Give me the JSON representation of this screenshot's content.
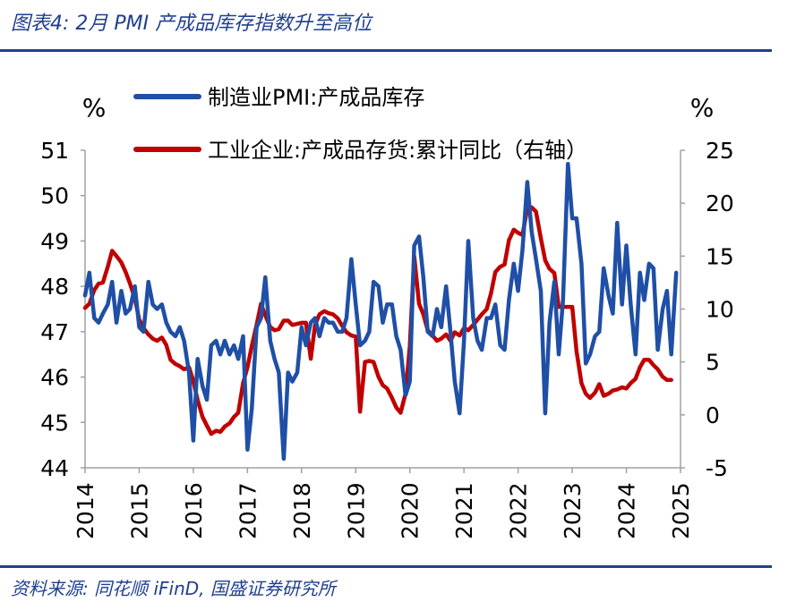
{
  "header": {
    "title": "图表4:  2月 PMI 产成品库存指数升至高位"
  },
  "footer": {
    "source": "资料来源:  同花顺 iFinD, 国盛证券研究所"
  },
  "colors": {
    "accent": "#1f3f8f",
    "series_blue": "#1f4fa6",
    "series_red": "#c00000"
  },
  "chart_data": {
    "type": "line",
    "legend_position": "top",
    "grid": false,
    "left_axis": {
      "label": "%",
      "range": [
        44,
        51
      ],
      "ticks": [
        "51",
        "50",
        "49",
        "48",
        "47",
        "46",
        "45",
        "44"
      ]
    },
    "right_axis": {
      "label": "%",
      "range": [
        -5,
        25
      ],
      "ticks": [
        "25",
        "20",
        "15",
        "10",
        "5",
        "0",
        "-5"
      ]
    },
    "x_axis": {
      "ticks": [
        "2014",
        "2015",
        "2016",
        "2017",
        "2018",
        "2019",
        "2020",
        "2021",
        "2022",
        "2023",
        "2024",
        "2025"
      ]
    },
    "series": [
      {
        "name": "制造业PMI:产成品库存",
        "axis": "left",
        "color": "#1f4fa6",
        "points": [
          [
            2014.0,
            47.8
          ],
          [
            2014.08,
            48.3
          ],
          [
            2014.17,
            47.3
          ],
          [
            2014.25,
            47.2
          ],
          [
            2014.33,
            47.4
          ],
          [
            2014.42,
            47.6
          ],
          [
            2014.5,
            48.1
          ],
          [
            2014.58,
            47.2
          ],
          [
            2014.67,
            47.9
          ],
          [
            2014.75,
            47.4
          ],
          [
            2014.83,
            47.5
          ],
          [
            2014.92,
            48.0
          ],
          [
            2015.0,
            47.1
          ],
          [
            2015.08,
            47.0
          ],
          [
            2015.17,
            48.1
          ],
          [
            2015.25,
            47.6
          ],
          [
            2015.33,
            47.5
          ],
          [
            2015.42,
            47.6
          ],
          [
            2015.5,
            47.2
          ],
          [
            2015.58,
            47.0
          ],
          [
            2015.67,
            46.9
          ],
          [
            2015.75,
            47.1
          ],
          [
            2015.83,
            46.8
          ],
          [
            2015.92,
            46.1
          ],
          [
            2016.0,
            44.6
          ],
          [
            2016.08,
            46.4
          ],
          [
            2016.17,
            45.8
          ],
          [
            2016.25,
            45.5
          ],
          [
            2016.33,
            46.7
          ],
          [
            2016.42,
            46.8
          ],
          [
            2016.5,
            46.5
          ],
          [
            2016.58,
            46.8
          ],
          [
            2016.67,
            46.5
          ],
          [
            2016.75,
            46.7
          ],
          [
            2016.83,
            46.4
          ],
          [
            2016.92,
            46.9
          ],
          [
            2017.0,
            44.4
          ],
          [
            2017.08,
            45.3
          ],
          [
            2017.17,
            47.1
          ],
          [
            2017.25,
            47.3
          ],
          [
            2017.33,
            48.2
          ],
          [
            2017.42,
            46.8
          ],
          [
            2017.5,
            46.4
          ],
          [
            2017.58,
            46.1
          ],
          [
            2017.67,
            44.2
          ],
          [
            2017.75,
            46.1
          ],
          [
            2017.83,
            45.9
          ],
          [
            2017.92,
            46.1
          ],
          [
            2018.0,
            47.1
          ],
          [
            2018.08,
            46.7
          ],
          [
            2018.17,
            47.2
          ],
          [
            2018.25,
            47.3
          ],
          [
            2018.33,
            46.9
          ],
          [
            2018.42,
            47.3
          ],
          [
            2018.5,
            47.2
          ],
          [
            2018.58,
            47.2
          ],
          [
            2018.67,
            47.0
          ],
          [
            2018.75,
            47.0
          ],
          [
            2018.83,
            47.3
          ],
          [
            2018.92,
            48.6
          ],
          [
            2019.0,
            47.6
          ],
          [
            2019.08,
            46.7
          ],
          [
            2019.17,
            46.8
          ],
          [
            2019.25,
            47.0
          ],
          [
            2019.33,
            48.1
          ],
          [
            2019.42,
            48.0
          ],
          [
            2019.5,
            47.2
          ],
          [
            2019.58,
            47.6
          ],
          [
            2019.67,
            47.6
          ],
          [
            2019.75,
            46.9
          ],
          [
            2019.83,
            46.6
          ],
          [
            2019.92,
            45.6
          ],
          [
            2020.0,
            45.9
          ],
          [
            2020.08,
            48.9
          ],
          [
            2020.17,
            49.1
          ],
          [
            2020.25,
            48.2
          ],
          [
            2020.33,
            47.0
          ],
          [
            2020.42,
            46.9
          ],
          [
            2020.5,
            47.5
          ],
          [
            2020.58,
            47.1
          ],
          [
            2020.67,
            48.0
          ],
          [
            2020.75,
            47.0
          ],
          [
            2020.83,
            45.9
          ],
          [
            2020.92,
            45.2
          ],
          [
            2021.0,
            46.8
          ],
          [
            2021.08,
            49.0
          ],
          [
            2021.17,
            47.3
          ],
          [
            2021.25,
            46.8
          ],
          [
            2021.33,
            46.6
          ],
          [
            2021.42,
            47.3
          ],
          [
            2021.5,
            47.3
          ],
          [
            2021.58,
            47.6
          ],
          [
            2021.67,
            46.7
          ],
          [
            2021.75,
            46.6
          ],
          [
            2021.83,
            47.7
          ],
          [
            2021.92,
            48.5
          ],
          [
            2022.0,
            47.9
          ],
          [
            2022.08,
            48.8
          ],
          [
            2022.17,
            50.3
          ],
          [
            2022.25,
            49.2
          ],
          [
            2022.33,
            48.6
          ],
          [
            2022.42,
            47.9
          ],
          [
            2022.5,
            45.2
          ],
          [
            2022.58,
            47.2
          ],
          [
            2022.67,
            48.1
          ],
          [
            2022.75,
            46.5
          ],
          [
            2022.83,
            47.7
          ],
          [
            2022.92,
            50.7
          ],
          [
            2023.0,
            49.5
          ],
          [
            2023.08,
            49.5
          ],
          [
            2023.17,
            48.5
          ],
          [
            2023.25,
            46.3
          ],
          [
            2023.33,
            46.5
          ],
          [
            2023.42,
            46.9
          ],
          [
            2023.5,
            47.0
          ],
          [
            2023.58,
            48.4
          ],
          [
            2023.67,
            47.8
          ],
          [
            2023.75,
            47.4
          ],
          [
            2023.83,
            49.4
          ],
          [
            2023.92,
            47.6
          ],
          [
            2024.0,
            48.9
          ],
          [
            2024.08,
            47.6
          ],
          [
            2024.17,
            46.5
          ],
          [
            2024.25,
            48.3
          ],
          [
            2024.33,
            47.7
          ],
          [
            2024.42,
            48.5
          ],
          [
            2024.5,
            48.4
          ],
          [
            2024.58,
            46.6
          ],
          [
            2024.67,
            47.5
          ],
          [
            2024.75,
            47.9
          ],
          [
            2024.83,
            46.5
          ],
          [
            2024.92,
            48.3
          ]
        ]
      },
      {
        "name": "工业企业:产成品存货:累计同比（右轴）",
        "axis": "right",
        "color": "#c00000",
        "points": [
          [
            2014.0,
            10.1
          ],
          [
            2014.08,
            10.5
          ],
          [
            2014.17,
            11.8
          ],
          [
            2014.25,
            12.4
          ],
          [
            2014.33,
            12.5
          ],
          [
            2014.42,
            14.0
          ],
          [
            2014.5,
            15.5
          ],
          [
            2014.58,
            15.0
          ],
          [
            2014.67,
            14.4
          ],
          [
            2014.75,
            13.5
          ],
          [
            2014.83,
            12.4
          ],
          [
            2014.92,
            11.0
          ],
          [
            2015.0,
            9.0
          ],
          [
            2015.08,
            8.2
          ],
          [
            2015.17,
            7.6
          ],
          [
            2015.25,
            7.2
          ],
          [
            2015.33,
            7.0
          ],
          [
            2015.42,
            7.3
          ],
          [
            2015.5,
            6.6
          ],
          [
            2015.58,
            5.2
          ],
          [
            2015.67,
            4.8
          ],
          [
            2015.75,
            4.6
          ],
          [
            2015.83,
            4.3
          ],
          [
            2015.92,
            4.5
          ],
          [
            2016.0,
            3.2
          ],
          [
            2016.08,
            1.4
          ],
          [
            2016.17,
            -0.2
          ],
          [
            2016.25,
            -1.0
          ],
          [
            2016.33,
            -1.8
          ],
          [
            2016.42,
            -1.5
          ],
          [
            2016.5,
            -1.6
          ],
          [
            2016.58,
            -1.1
          ],
          [
            2016.67,
            -0.8
          ],
          [
            2016.75,
            -0.2
          ],
          [
            2016.83,
            0.2
          ],
          [
            2016.92,
            3.0
          ],
          [
            2017.0,
            4.5
          ],
          [
            2017.08,
            6.5
          ],
          [
            2017.17,
            8.5
          ],
          [
            2017.25,
            10.5
          ],
          [
            2017.33,
            9.4
          ],
          [
            2017.42,
            8.3
          ],
          [
            2017.5,
            8.0
          ],
          [
            2017.58,
            8.1
          ],
          [
            2017.67,
            8.9
          ],
          [
            2017.75,
            8.9
          ],
          [
            2017.83,
            8.5
          ],
          [
            2017.92,
            8.6
          ],
          [
            2018.0,
            8.7
          ],
          [
            2018.08,
            8.7
          ],
          [
            2018.17,
            5.3
          ],
          [
            2018.25,
            8.5
          ],
          [
            2018.33,
            9.5
          ],
          [
            2018.42,
            9.8
          ],
          [
            2018.5,
            9.6
          ],
          [
            2018.58,
            9.5
          ],
          [
            2018.67,
            9.1
          ],
          [
            2018.75,
            8.4
          ],
          [
            2018.83,
            7.8
          ],
          [
            2018.92,
            7.5
          ],
          [
            2019.0,
            7.4
          ],
          [
            2019.08,
            0.3
          ],
          [
            2019.17,
            5.0
          ],
          [
            2019.25,
            5.1
          ],
          [
            2019.33,
            5.0
          ],
          [
            2019.42,
            3.6
          ],
          [
            2019.5,
            2.8
          ],
          [
            2019.58,
            2.5
          ],
          [
            2019.67,
            1.6
          ],
          [
            2019.75,
            0.7
          ],
          [
            2019.83,
            0.2
          ],
          [
            2019.92,
            2.0
          ],
          [
            2020.0,
            6.5
          ],
          [
            2020.08,
            15.0
          ],
          [
            2020.17,
            10.5
          ],
          [
            2020.25,
            9.5
          ],
          [
            2020.33,
            8.0
          ],
          [
            2020.42,
            7.5
          ],
          [
            2020.5,
            7.0
          ],
          [
            2020.58,
            7.2
          ],
          [
            2020.67,
            7.6
          ],
          [
            2020.75,
            7.0
          ],
          [
            2020.83,
            7.8
          ],
          [
            2020.92,
            7.5
          ],
          [
            2021.0,
            8.2
          ],
          [
            2021.08,
            8.0
          ],
          [
            2021.17,
            8.5
          ],
          [
            2021.25,
            9.0
          ],
          [
            2021.33,
            9.5
          ],
          [
            2021.42,
            10.0
          ],
          [
            2021.5,
            11.5
          ],
          [
            2021.58,
            13.5
          ],
          [
            2021.67,
            14.0
          ],
          [
            2021.75,
            14.2
          ],
          [
            2021.83,
            16.5
          ],
          [
            2021.92,
            17.5
          ],
          [
            2022.0,
            17.2
          ],
          [
            2022.08,
            17.0
          ],
          [
            2022.17,
            19.5
          ],
          [
            2022.25,
            19.6
          ],
          [
            2022.33,
            19.2
          ],
          [
            2022.42,
            16.7
          ],
          [
            2022.5,
            14.6
          ],
          [
            2022.58,
            13.8
          ],
          [
            2022.67,
            13.4
          ],
          [
            2022.75,
            10.2
          ],
          [
            2022.83,
            10.2
          ],
          [
            2022.92,
            10.2
          ],
          [
            2023.0,
            10.2
          ],
          [
            2023.08,
            6.0
          ],
          [
            2023.17,
            3.0
          ],
          [
            2023.25,
            2.0
          ],
          [
            2023.33,
            1.6
          ],
          [
            2023.42,
            2.1
          ],
          [
            2023.5,
            2.9
          ],
          [
            2023.58,
            1.8
          ],
          [
            2023.67,
            2.0
          ],
          [
            2023.75,
            2.3
          ],
          [
            2023.83,
            2.4
          ],
          [
            2023.92,
            2.6
          ],
          [
            2024.0,
            2.5
          ],
          [
            2024.08,
            3.0
          ],
          [
            2024.17,
            3.4
          ],
          [
            2024.25,
            4.5
          ],
          [
            2024.33,
            5.2
          ],
          [
            2024.42,
            5.2
          ],
          [
            2024.5,
            4.7
          ],
          [
            2024.58,
            4.3
          ],
          [
            2024.67,
            3.6
          ],
          [
            2024.75,
            3.3
          ],
          [
            2024.83,
            3.3
          ]
        ]
      }
    ]
  }
}
